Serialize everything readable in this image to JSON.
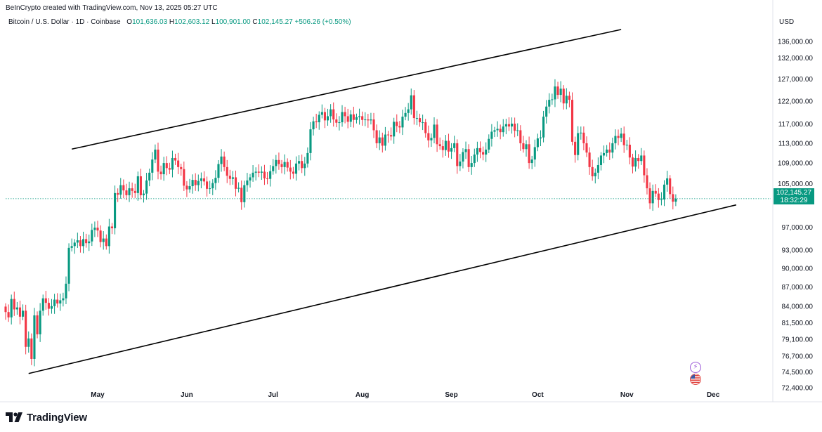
{
  "header": {
    "attribution": "BeInCrypto created with TradingView.com, Nov 13, 2025 05:27 UTC",
    "symbol": "Bitcoin / U.S. Dollar · 1D · Coinbase",
    "o_label": "O",
    "o_value": "101,636.03",
    "h_label": "H",
    "h_value": "102,603.12",
    "l_label": "L",
    "l_value": "100,901.00",
    "c_label": "C",
    "c_value": "102,145.27",
    "change": "+506.26 (+0.50%)"
  },
  "price_scale": {
    "currency": "USD",
    "current_price": "102,145.27",
    "countdown": "18:32:29"
  },
  "brand": {
    "name": "TradingView"
  },
  "colors": {
    "up": "#089981",
    "down": "#f23645",
    "channel": "#000000",
    "badge": "#089981"
  },
  "icons": {
    "event_1": "flash-icon",
    "event_2": "us-flag-icon"
  },
  "chart_data": {
    "type": "candlestick",
    "title": "Bitcoin / U.S. Dollar · 1D · Coinbase",
    "xlabel": "",
    "ylabel": "",
    "y_scale": "log",
    "ylim": [
      72400,
      139000
    ],
    "y_ticks": [
      136000,
      132000,
      127000,
      122000,
      117000,
      113000,
      109000,
      105000,
      97000,
      93000,
      90000,
      87000,
      84000,
      81500,
      79100,
      76700,
      74500,
      72400
    ],
    "y_tick_labels": [
      "136,000.00",
      "132,000.00",
      "127,000.00",
      "122,000.00",
      "117,000.00",
      "113,000.00",
      "109,000.00",
      "105,000.00",
      "97,000.00",
      "93,000.00",
      "90,000.00",
      "87,000.00",
      "84,000.00",
      "81,500.00",
      "79,100.00",
      "76,700.00",
      "74,500.00",
      "72,400.00"
    ],
    "x_ticks": [
      "May",
      "Jun",
      "Jul",
      "Aug",
      "Sep",
      "Oct",
      "Nov",
      "Dec"
    ],
    "x_tick_dates": [
      "2025-05-01",
      "2025-06-01",
      "2025-07-01",
      "2025-08-01",
      "2025-09-01",
      "2025-10-01",
      "2025-11-01",
      "2025-12-01"
    ],
    "x_range": [
      "2025-03-30",
      "2025-12-21"
    ],
    "grid": false,
    "close_series": {
      "start_date": "2025-03-30",
      "interval": "1D",
      "closes": [
        83100,
        82300,
        85100,
        83500,
        83800,
        82400,
        83300,
        78000,
        79200,
        76300,
        82600,
        79800,
        83300,
        85200,
        84500,
        83600,
        84000,
        85000,
        84400,
        84900,
        85200,
        87500,
        93400,
        93700,
        94300,
        94700,
        93700,
        94900,
        94200,
        94500,
        96500,
        96900,
        96400,
        94400,
        95000,
        93700,
        97100,
        96800,
        103200,
        102900,
        104700,
        103700,
        102800,
        104100,
        103600,
        103200,
        106400,
        102800,
        103100,
        105600,
        107100,
        109700,
        111700,
        107300,
        106800,
        109000,
        108000,
        107700,
        110000,
        109500,
        108200,
        107800,
        104600,
        103900,
        104500,
        105700,
        104700,
        105500,
        106000,
        105400,
        104000,
        104100,
        105100,
        106100,
        108800,
        110300,
        108200,
        106500,
        105900,
        106200,
        104000,
        104200,
        101500,
        104700,
        105600,
        106200,
        107100,
        107300,
        107100,
        107300,
        106000,
        105900,
        107400,
        108400,
        109600,
        108800,
        108200,
        109200,
        108100,
        107300,
        106900,
        108900,
        109400,
        108000,
        108900,
        111000,
        115900,
        117600,
        117400,
        119000,
        119600,
        117800,
        118700,
        120200,
        118000,
        117300,
        117400,
        119600,
        118700,
        117500,
        119100,
        117900,
        118500,
        118700,
        117900,
        118000,
        117800,
        118000,
        115700,
        113000,
        114200,
        112500,
        114800,
        114700,
        114400,
        117500,
        116600,
        116300,
        118600,
        119400,
        120200,
        123300,
        118300,
        118300,
        117400,
        117400,
        115100,
        113600,
        114100,
        116900,
        112800,
        112400,
        111600,
        113500,
        111300,
        112000,
        113000,
        108400,
        109300,
        111200,
        111800,
        108200,
        109000,
        110700,
        112000,
        111200,
        110700,
        111700,
        113900,
        115400,
        115700,
        116000,
        115300,
        116500,
        117000,
        116500,
        117100,
        115600,
        115700,
        113000,
        111800,
        112800,
        109000,
        109700,
        112200,
        114000,
        114200,
        118600,
        120800,
        122300,
        122400,
        125300,
        123400,
        124800,
        121500,
        123200,
        122300,
        113300,
        110600,
        115100,
        115200,
        113000,
        111100,
        108200,
        106400,
        107100,
        108600,
        110500,
        111000,
        111700,
        111100,
        113000,
        114500,
        114100,
        115000,
        112600,
        112700,
        110100,
        108300,
        110000,
        109400,
        110500,
        106600,
        104100,
        101300,
        103600,
        103100,
        101900,
        102000,
        104800,
        106000,
        103000,
        101600,
        102145
      ]
    },
    "channel": {
      "upper": [
        {
          "date": "2025-04-22",
          "price": 111800
        },
        {
          "date": "2025-10-30",
          "price": 139000
        }
      ],
      "lower": [
        {
          "date": "2025-04-07",
          "price": 74300
        },
        {
          "date": "2025-12-09",
          "price": 101000
        }
      ]
    },
    "last_price": 102145.27
  }
}
